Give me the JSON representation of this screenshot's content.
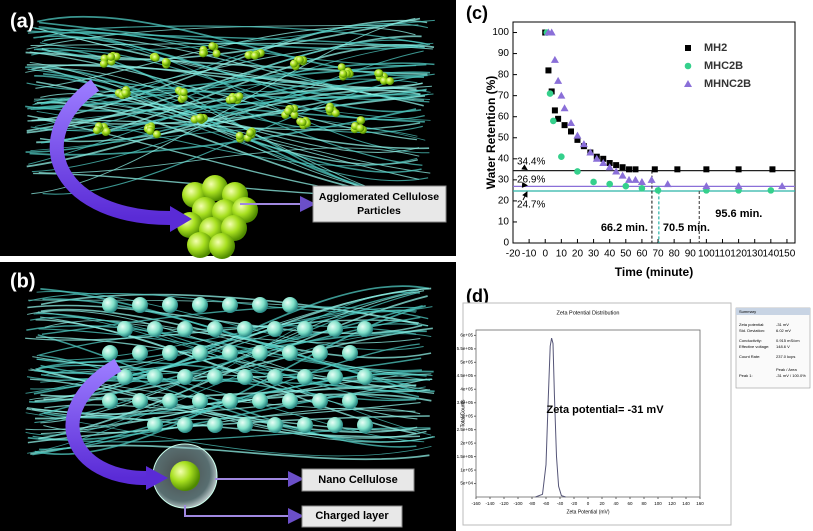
{
  "panel_labels": [
    "(a)",
    "(b)",
    "(c)",
    "(d)"
  ],
  "illustrations": {
    "a_label": [
      "Agglomerated Cellulose",
      "Particles"
    ],
    "b_labels": [
      "Nano Cellulose",
      "Charged layer"
    ]
  },
  "chart_data": [
    {
      "type": "scatter",
      "xlabel": "Time (minute)",
      "ylabel": "Water Retention (%)",
      "xlim": [
        -20,
        155
      ],
      "xticks": [
        -20,
        -10,
        0,
        10,
        20,
        30,
        40,
        50,
        60,
        70,
        80,
        90,
        100,
        110,
        120,
        130,
        140,
        150
      ],
      "ylim": [
        0,
        105
      ],
      "yticks": [
        0,
        10,
        20,
        30,
        40,
        50,
        60,
        70,
        80,
        90,
        100
      ],
      "legend": "upper right",
      "series": [
        {
          "name": "MH2",
          "color": "#000000",
          "marker": "square",
          "x": [
            0,
            2,
            4,
            6,
            8,
            12,
            16,
            20,
            24,
            28,
            32,
            36,
            40,
            44,
            48,
            52,
            56,
            68,
            82,
            100,
            120,
            141
          ],
          "values": [
            100,
            82,
            72,
            63,
            59,
            56,
            53,
            49,
            46,
            43,
            41,
            40,
            38,
            37,
            36,
            35,
            35,
            35,
            35,
            35,
            35,
            35
          ]
        },
        {
          "name": "MHC2B",
          "color": "#35d08c",
          "marker": "circle",
          "x": [
            1,
            3,
            5,
            10,
            20,
            30,
            40,
            50,
            60,
            70,
            100,
            120,
            140
          ],
          "values": [
            100,
            71,
            58,
            41,
            34,
            29,
            28,
            27,
            26,
            25,
            25,
            25,
            25
          ]
        },
        {
          "name": "MHNC2B",
          "color": "#8a6fd8",
          "marker": "triangle",
          "x": [
            2,
            4,
            6,
            8,
            10,
            12,
            16,
            20,
            24,
            28,
            32,
            36,
            40,
            44,
            48,
            52,
            56,
            60,
            66,
            76,
            100,
            120,
            147
          ],
          "values": [
            100,
            100,
            87,
            77,
            70,
            64,
            57,
            51,
            47,
            43,
            40,
            38,
            36,
            34,
            32,
            30,
            30,
            29,
            30,
            28,
            27,
            27,
            27
          ]
        }
      ],
      "hlines": [
        {
          "value": 34.4,
          "label": "34.4%",
          "color": "#222222"
        },
        {
          "value": 26.9,
          "label": "26.9%",
          "color": "#8a6fd8"
        },
        {
          "value": 24.7,
          "label": "24.7%",
          "color": "#2bb5a8"
        }
      ],
      "vlines": [
        {
          "value": 66.2,
          "label": "66.2 min.",
          "color": "#333333"
        },
        {
          "value": 70.5,
          "label": "70.5 min.",
          "color": "#2bb5a8"
        },
        {
          "value": 95.6,
          "label": "95.6 min.",
          "color": "#555555"
        }
      ]
    },
    {
      "type": "line",
      "title": "Zeta Potential Distribution",
      "xlabel": "Zeta Potential (mV)",
      "ylabel": "Total Counts",
      "xlim": [
        -160,
        160
      ],
      "xticks": [
        -160,
        -140,
        -120,
        -100,
        -80,
        -60,
        -40,
        -20,
        0,
        20,
        40,
        60,
        80,
        100,
        120,
        140,
        160
      ],
      "ylim": [
        0,
        620000
      ],
      "yticks": [
        {
          "value": 50000,
          "label": "5e+04"
        },
        {
          "value": 100000,
          "label": "1e+05"
        },
        {
          "value": 150000,
          "label": "1.5e+05"
        },
        {
          "value": 200000,
          "label": "2e+05"
        },
        {
          "value": 250000,
          "label": "2.5e+05"
        },
        {
          "value": 300000,
          "label": "3e+05"
        },
        {
          "value": 350000,
          "label": "3.5e+05"
        },
        {
          "value": 400000,
          "label": "4e+05"
        },
        {
          "value": 450000,
          "label": "4.5e+05"
        },
        {
          "value": 500000,
          "label": "5e+05"
        },
        {
          "value": 550000,
          "label": "5.5e+05"
        },
        {
          "value": 600000,
          "label": "6e+05"
        }
      ],
      "series": [
        {
          "color": "#555577",
          "x": [
            -75,
            -65,
            -60,
            -57,
            -54,
            -52,
            -50,
            -48,
            -45,
            -42,
            -38,
            -32
          ],
          "values": [
            0,
            10000,
            120000,
            350000,
            560000,
            590000,
            570000,
            380000,
            150000,
            40000,
            5000,
            0
          ]
        }
      ],
      "annotation": "Zeta potential= -31 mV",
      "summary": {
        "title": "Summary",
        "rows": [
          [
            "Zeta potential:",
            "-31 mV"
          ],
          [
            "Std. Deviation:",
            "6.02 mV"
          ],
          [
            "Conductivity:",
            "0.915 mS/cm"
          ],
          [
            "Effective voltage:",
            "148.6 V"
          ],
          [
            "Count Rate:",
            "237.0 kcps"
          ]
        ],
        "peak_header": "Peak / Area",
        "peak_row": [
          "Peak 1:",
          "-31 mV / 100.0%"
        ]
      }
    }
  ]
}
